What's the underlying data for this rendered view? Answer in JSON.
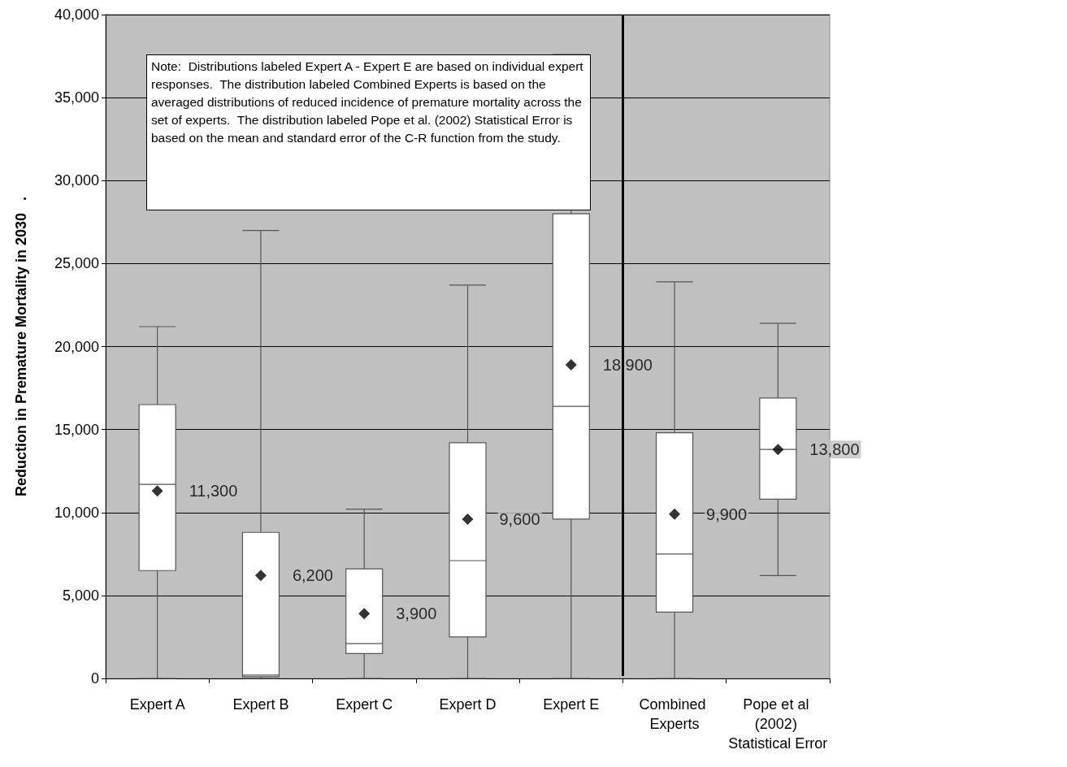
{
  "chart_data": {
    "type": "box",
    "ylabel": "Reduction in Premature Mortality in 2030   .",
    "categories": [
      "Expert A",
      "Expert B",
      "Expert C",
      "Expert D",
      "Expert E",
      "Combined Experts",
      "Pope et al (2002) Statistical Error"
    ],
    "boxes": [
      {
        "low": 0,
        "q1": 6500,
        "median": 11700,
        "q3": 16500,
        "high": 21200,
        "mean": 11300
      },
      {
        "low": 0,
        "q1": 100,
        "median": 200,
        "q3": 8800,
        "high": 27000,
        "mean": 6200
      },
      {
        "low": 0,
        "q1": 1500,
        "median": 2100,
        "q3": 6600,
        "high": 10200,
        "mean": 3900
      },
      {
        "low": 0,
        "q1": 2500,
        "median": 7100,
        "q3": 14200,
        "high": 23700,
        "mean": 9600
      },
      {
        "low": 0,
        "q1": 9600,
        "median": 16400,
        "q3": 28000,
        "high": 37600,
        "mean": 18900
      },
      {
        "low": 0,
        "q1": 4000,
        "median": 7500,
        "q3": 14800,
        "high": 23900,
        "mean": 9900
      },
      {
        "low": 6200,
        "q1": 10800,
        "median": 13800,
        "q3": 16900,
        "high": 21400,
        "mean": 13800
      }
    ],
    "value_labels": [
      "11,300",
      "6,200",
      "3,900",
      "9,600",
      "18,900",
      "9,900",
      "13,800"
    ],
    "marker": "diamond",
    "ylim": [
      0,
      40000
    ],
    "yticks": [
      0,
      {
        "value": 5000,
        "label": "5,000"
      },
      {
        "value": 10000,
        "label": "10,000"
      },
      {
        "value": 15000,
        "label": "15,000"
      },
      {
        "value": 20000,
        "label": "20,000"
      },
      {
        "value": 25000,
        "label": "25,000"
      },
      {
        "value": 30000,
        "label": "30,000"
      },
      {
        "value": 35000,
        "label": "35,000"
      },
      {
        "value": 40000,
        "label": "40,000"
      }
    ],
    "grid": "y",
    "annotations": [
      "Note:  Distributions labeled Expert A - Expert E are based on individual expert responses.  The distribution labeled Combined Experts is based on the averaged distributions of reduced incidence of premature mortality across the set of experts.  The distribution labeled Pope et al. (2002) Statistical Error is based on the mean and standard error of the C-R function from the study."
    ]
  }
}
